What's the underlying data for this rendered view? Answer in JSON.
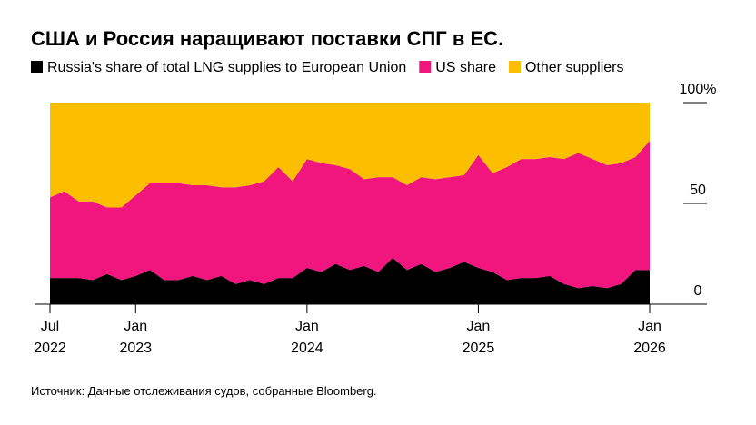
{
  "chart_data": {
    "type": "stacked-area",
    "title": "США и Россия наращивают поставки СПГ в ЕС.",
    "source": "Источник: Данные отслеживания судов, собранные Bloomberg.",
    "x": [
      "2022-07",
      "2022-08",
      "2022-09",
      "2022-10",
      "2022-11",
      "2022-12",
      "2023-01",
      "2023-02",
      "2023-03",
      "2023-04",
      "2023-05",
      "2023-06",
      "2023-07",
      "2023-08",
      "2023-09",
      "2023-10",
      "2023-11",
      "2023-12",
      "2024-01",
      "2024-02",
      "2024-03",
      "2024-04",
      "2024-05",
      "2024-06",
      "2024-07",
      "2024-08",
      "2024-09",
      "2024-10",
      "2024-11",
      "2024-12",
      "2025-01",
      "2025-02",
      "2025-03",
      "2025-04",
      "2025-05",
      "2025-06",
      "2025-07",
      "2025-08",
      "2025-09",
      "2025-10",
      "2025-11",
      "2025-12",
      "2026-01"
    ],
    "series": [
      {
        "name": "Russia's share of total LNG supplies to European Union",
        "color": "#000000",
        "values": [
          13,
          13,
          13,
          12,
          15,
          12,
          14,
          17,
          12,
          12,
          14,
          12,
          14,
          10,
          12,
          10,
          13,
          13,
          18,
          16,
          20,
          17,
          19,
          16,
          23,
          17,
          20,
          16,
          18,
          21,
          18,
          16,
          12,
          13,
          13,
          14,
          10,
          8,
          9,
          8,
          10,
          17,
          17
        ]
      },
      {
        "name": "US share",
        "color": "#f1157e",
        "values": [
          40,
          43,
          38,
          39,
          33,
          36,
          40,
          43,
          48,
          48,
          45,
          47,
          44,
          48,
          47,
          51,
          55,
          48,
          54,
          54,
          49,
          50,
          43,
          47,
          40,
          42,
          43,
          46,
          45,
          43,
          56,
          49,
          56,
          59,
          59,
          59,
          62,
          67,
          63,
          61,
          60,
          56,
          64
        ]
      },
      {
        "name": "Other suppliers",
        "color": "#fbbf00",
        "values": [
          47,
          44,
          49,
          49,
          52,
          52,
          46,
          40,
          40,
          40,
          41,
          41,
          42,
          42,
          41,
          39,
          32,
          39,
          28,
          30,
          31,
          33,
          38,
          37,
          37,
          41,
          37,
          38,
          37,
          36,
          26,
          35,
          32,
          28,
          28,
          27,
          28,
          25,
          28,
          31,
          30,
          27,
          19
        ]
      }
    ],
    "ylim": [
      0,
      100
    ],
    "yticks": [
      0,
      50,
      {
        "value": 100,
        "label": "100%"
      }
    ],
    "xticks": [
      {
        "value": "2022-07",
        "label": [
          "Jul",
          "2022"
        ]
      },
      {
        "value": "2023-01",
        "label": [
          "Jan",
          "2023"
        ]
      },
      {
        "value": "2024-01",
        "label": [
          "Jan",
          "2024"
        ]
      },
      {
        "value": "2025-01",
        "label": [
          "Jan",
          "2025"
        ]
      },
      {
        "value": "2026-01",
        "label": [
          "Jan",
          "2026"
        ]
      }
    ]
  }
}
